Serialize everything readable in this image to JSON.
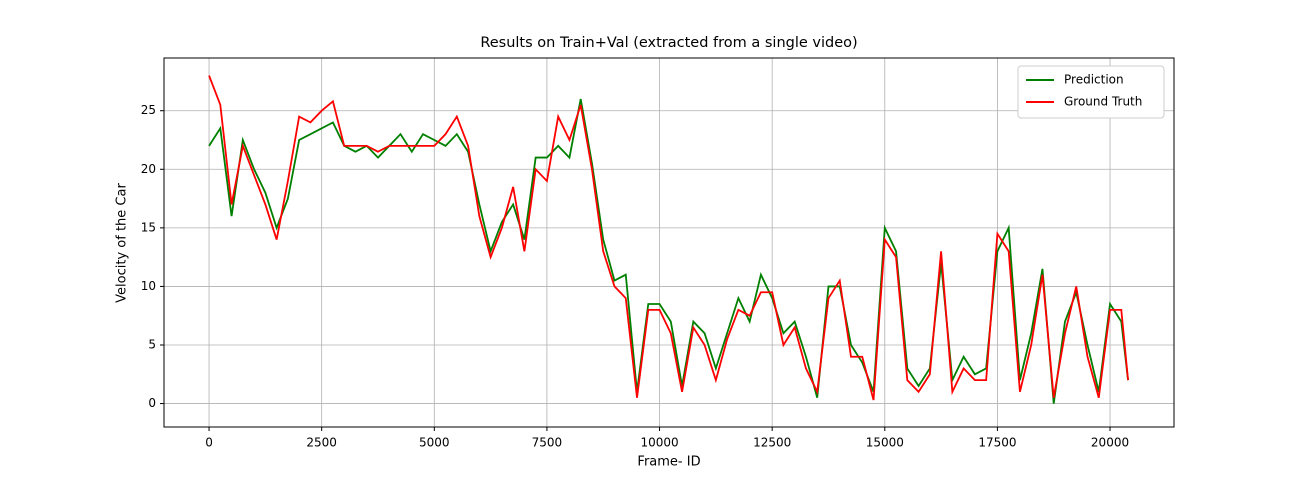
{
  "chart_data": {
    "type": "line",
    "title": "Results on Train+Val (extracted from a single video)",
    "xlabel": "Frame- ID",
    "ylabel": "Velocity of the Car",
    "x": [
      0,
      250,
      500,
      750,
      1000,
      1250,
      1500,
      1750,
      2000,
      2250,
      2500,
      2750,
      3000,
      3250,
      3500,
      3750,
      4000,
      4250,
      4500,
      4750,
      5000,
      5250,
      5500,
      5750,
      6000,
      6250,
      6500,
      6750,
      7000,
      7250,
      7500,
      7750,
      8000,
      8250,
      8500,
      8750,
      9000,
      9250,
      9500,
      9750,
      10000,
      10250,
      10500,
      10750,
      11000,
      11250,
      11500,
      11750,
      12000,
      12250,
      12500,
      12750,
      13000,
      13250,
      13500,
      13750,
      14000,
      14250,
      14500,
      14750,
      15000,
      15250,
      15500,
      15750,
      16000,
      16250,
      16500,
      16750,
      17000,
      17250,
      17500,
      17750,
      18000,
      18250,
      18500,
      18750,
      19000,
      19250,
      19500,
      19750,
      20000,
      20250,
      20400
    ],
    "series": [
      {
        "name": "Prediction",
        "color": "#008000",
        "values": [
          22,
          23.5,
          16,
          22.5,
          20,
          18,
          15,
          17.5,
          22.5,
          23,
          23.5,
          24,
          22,
          21.5,
          22,
          21,
          22,
          23,
          21.5,
          23,
          22.5,
          22,
          23,
          21.5,
          17,
          13,
          15.5,
          17,
          14,
          21,
          21,
          22,
          21,
          26,
          20.5,
          14,
          10.5,
          11,
          1,
          8.5,
          8.5,
          7,
          1.5,
          7,
          6,
          3,
          6,
          9,
          7,
          11,
          9,
          6,
          7,
          4,
          0.5,
          10,
          10,
          5,
          3.5,
          1,
          15,
          13,
          3,
          1.5,
          3,
          12,
          2,
          4,
          2.5,
          3,
          13,
          15,
          2,
          6,
          11.5,
          0,
          7,
          9.5,
          5,
          1,
          8.5,
          7,
          2
        ]
      },
      {
        "name": "Ground Truth",
        "color": "#ff0000",
        "values": [
          28,
          25.5,
          17,
          22,
          19.5,
          17,
          14,
          19,
          24.5,
          24,
          25,
          25.8,
          22,
          22,
          22,
          21.5,
          22,
          22,
          22,
          22,
          22,
          23,
          24.5,
          22,
          16,
          12.5,
          15,
          18.5,
          13,
          20,
          19,
          24.5,
          22.5,
          25.5,
          20,
          13,
          10,
          9,
          0.5,
          8,
          8,
          6,
          1,
          6.5,
          5,
          2,
          5.5,
          8,
          7.5,
          9.5,
          9.5,
          5,
          6.5,
          3,
          1,
          9,
          10.5,
          4,
          4,
          0.3,
          14,
          12.5,
          2,
          1,
          2.5,
          13,
          1,
          3,
          2,
          2,
          14.5,
          13,
          1,
          5,
          11,
          0.5,
          6,
          10,
          4,
          0.5,
          8,
          8,
          2
        ]
      }
    ],
    "xlim": [
      -1000,
      21420
    ],
    "ylim": [
      -2,
      29.5
    ],
    "xticks": [
      0,
      2500,
      5000,
      7500,
      10000,
      12500,
      15000,
      17500,
      20000
    ],
    "yticks": [
      0,
      5,
      10,
      15,
      20,
      25
    ],
    "grid": true,
    "legend": "upper right"
  }
}
